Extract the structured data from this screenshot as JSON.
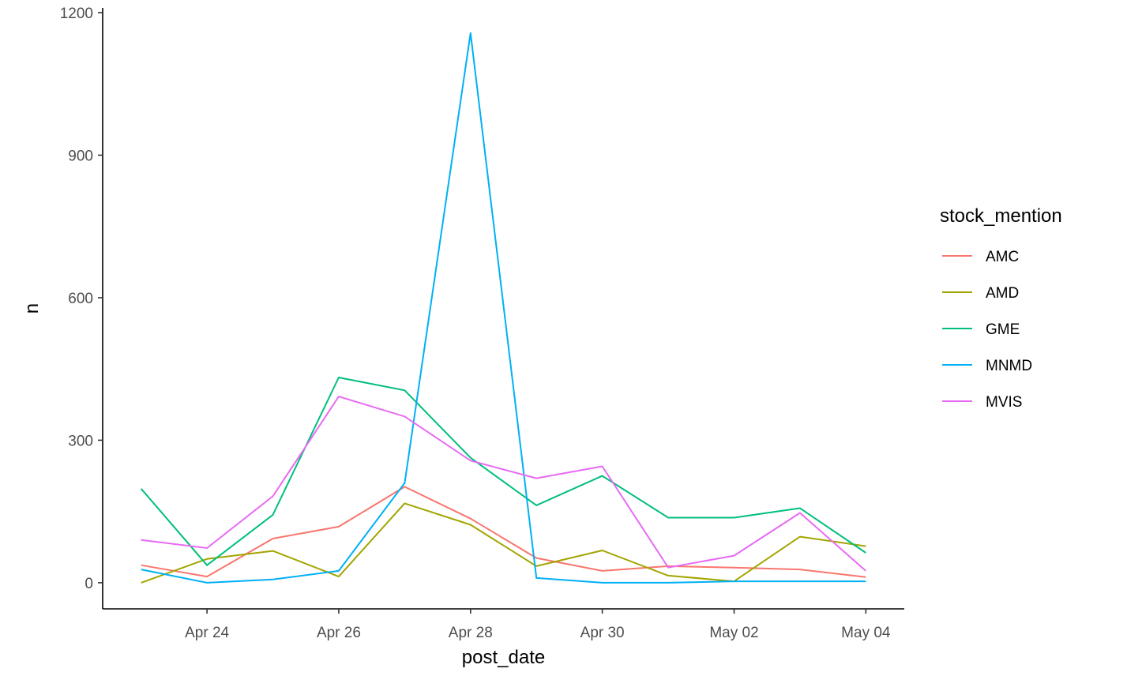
{
  "chart_data": {
    "type": "line",
    "title": "",
    "xlabel": "post_date",
    "ylabel": "n",
    "x_type": "date",
    "x": [
      "2021-04-23",
      "2021-04-24",
      "2021-04-25",
      "2021-04-26",
      "2021-04-27",
      "2021-04-28",
      "2021-04-29",
      "2021-04-30",
      "2021-05-01",
      "2021-05-02",
      "2021-05-03",
      "2021-05-04"
    ],
    "xlim": [
      "2021-04-22T10:00",
      "2021-05-04T14:00"
    ],
    "x_ticks": [
      {
        "date": "2021-04-24",
        "label": "Apr 24"
      },
      {
        "date": "2021-04-26",
        "label": "Apr 26"
      },
      {
        "date": "2021-04-28",
        "label": "Apr 28"
      },
      {
        "date": "2021-04-30",
        "label": "Apr 30"
      },
      {
        "date": "2021-05-02",
        "label": "May 02"
      },
      {
        "date": "2021-05-04",
        "label": "May 04"
      }
    ],
    "ylim": [
      -55,
      1210
    ],
    "y_ticks": [
      {
        "value": 0,
        "label": "0"
      },
      {
        "value": 300,
        "label": "300"
      },
      {
        "value": 600,
        "label": "600"
      },
      {
        "value": 900,
        "label": "900"
      },
      {
        "value": 1200,
        "label": "1200"
      }
    ],
    "grid": false,
    "legend": {
      "title": "stock_mention",
      "position": "right"
    },
    "series": [
      {
        "name": "AMC",
        "color": "#F8766D",
        "values": [
          37,
          13,
          93,
          118,
          202,
          135,
          52,
          25,
          35,
          32,
          28,
          12
        ]
      },
      {
        "name": "AMD",
        "color": "#A3A500",
        "values": [
          0,
          50,
          67,
          13,
          167,
          122,
          35,
          68,
          15,
          3,
          97,
          77
        ]
      },
      {
        "name": "GME",
        "color": "#00BF7D",
        "values": [
          198,
          37,
          143,
          432,
          405,
          263,
          163,
          225,
          137,
          137,
          157,
          63
        ]
      },
      {
        "name": "MNMD",
        "color": "#00B0F6",
        "values": [
          28,
          0,
          7,
          25,
          210,
          1157,
          10,
          0,
          0,
          3,
          3,
          3
        ]
      },
      {
        "name": "MVIS",
        "color": "#E76BF3",
        "values": [
          90,
          73,
          182,
          392,
          350,
          257,
          220,
          245,
          32,
          57,
          147,
          25
        ]
      }
    ]
  }
}
